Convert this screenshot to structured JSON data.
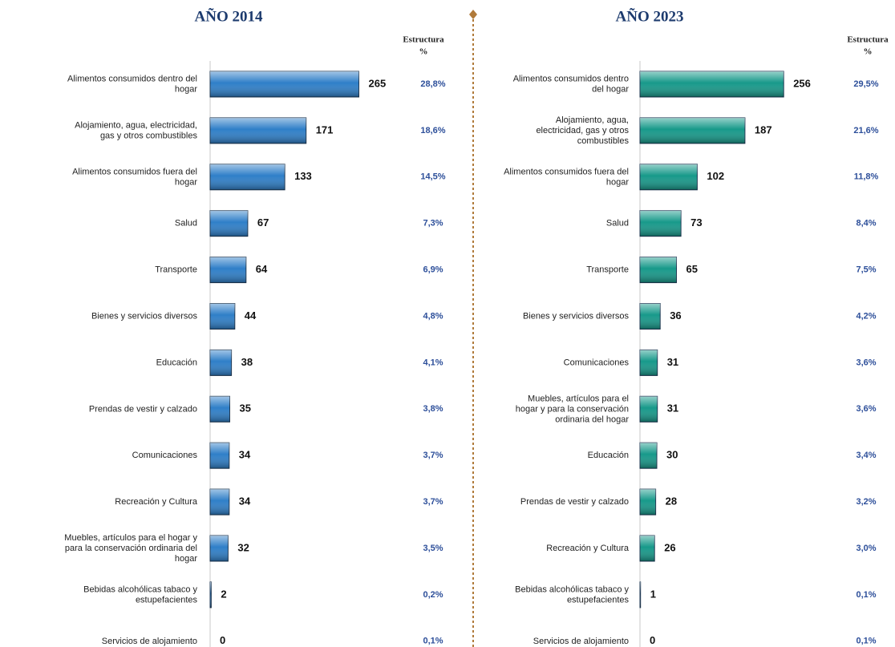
{
  "chart_data": [
    {
      "type": "bar",
      "title": "AÑO 2014",
      "share_header": [
        "Estructura",
        "%"
      ],
      "color": "#2f7fc8",
      "categories": [
        "Alimentos consumidos dentro del hogar",
        "Alojamiento, agua, electricidad, gas y otros combustibles",
        "Alimentos consumidos fuera del hogar",
        "Salud",
        "Transporte",
        "Bienes y servicios diversos",
        "Educación",
        "Prendas de vestir y calzado",
        "Comunicaciones",
        "Recreación y Cultura",
        "Muebles, artículos para el hogar y para la conservación ordinaria del hogar",
        "Bebidas alcohólicas tabaco y estupefacientes",
        "Servicios de alojamiento"
      ],
      "values": [
        265,
        171,
        133,
        67,
        64,
        44,
        38,
        35,
        34,
        34,
        32,
        2,
        0
      ],
      "shares": [
        28.8,
        18.6,
        14.5,
        7.3,
        6.9,
        4.8,
        4.1,
        3.8,
        3.7,
        3.7,
        3.5,
        0.2,
        0.1
      ],
      "share_labels": [
        "28,8%",
        "18,6%",
        "14,5%",
        "7,3%",
        "6,9%",
        "4,8%",
        "4,1%",
        "3,8%",
        "3,7%",
        "3,7%",
        "3,5%",
        "0,2%",
        "0,1%"
      ]
    },
    {
      "type": "bar",
      "title": "AÑO 2023",
      "share_header": [
        "Estructura",
        "%"
      ],
      "color": "#17998a",
      "categories": [
        "Alimentos consumidos dentro del hogar",
        "Alojamiento, agua, electricidad, gas y otros combustibles",
        "Alimentos consumidos fuera del hogar",
        "Salud",
        "Transporte",
        "Bienes y servicios diversos",
        "Comunicaciones",
        "Muebles, artículos para el hogar y para la conservación ordinaria del hogar",
        "Educación",
        "Prendas de vestir y calzado",
        "Recreación y Cultura",
        "Bebidas alcohólicas tabaco y estupefacientes",
        "Servicios de alojamiento"
      ],
      "values": [
        256,
        187,
        102,
        73,
        65,
        36,
        31,
        31,
        30,
        28,
        26,
        1,
        0
      ],
      "shares": [
        29.5,
        21.6,
        11.8,
        8.4,
        7.5,
        4.2,
        3.6,
        3.6,
        3.4,
        3.2,
        3.0,
        0.1,
        0.1
      ],
      "share_labels": [
        "29,5%",
        "21,6%",
        "11,8%",
        "8,4%",
        "7,5%",
        "4,2%",
        "3,6%",
        "3,6%",
        "3,4%",
        "3,2%",
        "3,0%",
        "0,1%",
        "0,1%"
      ]
    }
  ]
}
